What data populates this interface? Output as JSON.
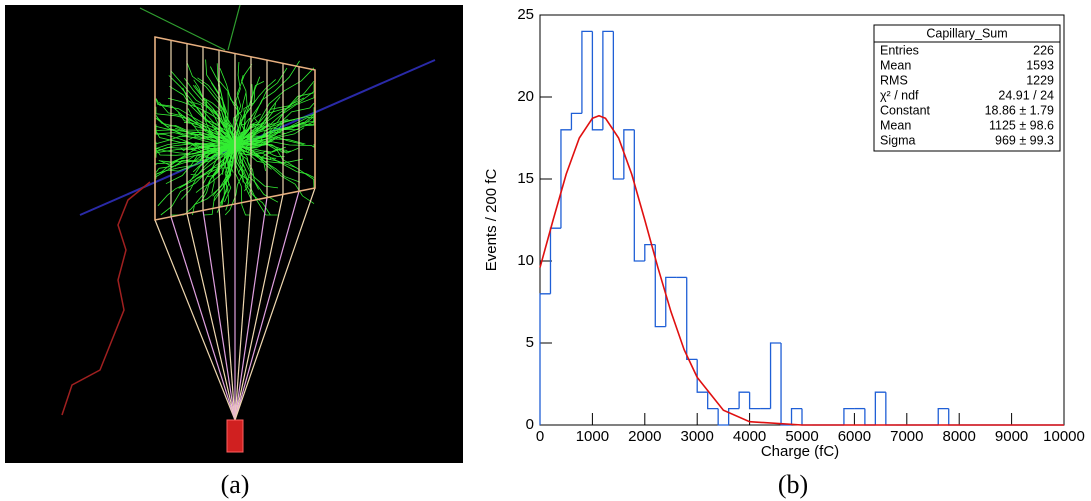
{
  "captions": [
    "(a)",
    "(b)"
  ],
  "chart_data": {
    "type": "histogram",
    "xlabel": "Charge (fC)",
    "ylabel": "Events / 200 fC",
    "color": "#1f5fd6",
    "bins": [
      0,
      200,
      400,
      600,
      800,
      1000,
      1200,
      1400,
      1600,
      1800,
      2000,
      2200,
      2400,
      2600,
      2800,
      3000,
      3200,
      3400,
      3600,
      3800,
      4000,
      4200,
      4400,
      4600,
      4800,
      5000,
      5200,
      5400,
      5600,
      5800,
      6000,
      6200,
      6400,
      6600,
      6800,
      7000,
      7200,
      7400,
      7600,
      7800,
      8000,
      8200,
      8400,
      8600,
      8800,
      9000,
      9200,
      9400,
      9600,
      9800,
      10000
    ],
    "values": [
      8,
      12,
      18,
      19,
      24,
      18,
      24,
      15,
      18,
      10,
      11,
      6,
      9,
      9,
      4,
      2,
      1,
      0,
      1,
      2,
      1,
      1,
      5,
      0,
      1,
      0,
      0,
      0,
      0,
      1,
      1,
      0,
      2,
      0,
      0,
      0,
      0,
      0,
      1,
      0,
      0,
      0,
      0,
      0,
      0,
      0,
      0,
      0,
      0,
      0
    ],
    "fit": {
      "color": "#e01010",
      "x": [
        0,
        250,
        500,
        750,
        1000,
        1125,
        1250,
        1500,
        1750,
        2000,
        2250,
        2500,
        2750,
        3000,
        3500,
        4000,
        5000,
        10000
      ],
      "values": [
        9.6,
        12.5,
        15.3,
        17.5,
        18.7,
        18.86,
        18.7,
        17.5,
        15.3,
        12.5,
        9.6,
        6.9,
        4.6,
        2.9,
        0.9,
        0.2,
        0,
        0
      ]
    },
    "xlim": [
      0,
      10000
    ],
    "xticks": [
      0,
      1000,
      2000,
      3000,
      4000,
      5000,
      6000,
      7000,
      8000,
      9000,
      10000
    ],
    "ylim": [
      0,
      25
    ],
    "yticks": [
      0,
      5,
      10,
      15,
      20,
      25
    ],
    "stats": {
      "title": "Capillary_Sum",
      "rows": [
        [
          "Entries",
          "226"
        ],
        [
          "Mean",
          "1593"
        ],
        [
          "RMS",
          "1229"
        ],
        [
          "χ² / ndf",
          "24.91 / 24"
        ],
        [
          "Constant",
          "18.86 ± 1.79"
        ],
        [
          "Mean",
          "1125 ± 98.6"
        ],
        [
          "Sigma",
          "969 ± 99.3"
        ]
      ]
    }
  }
}
